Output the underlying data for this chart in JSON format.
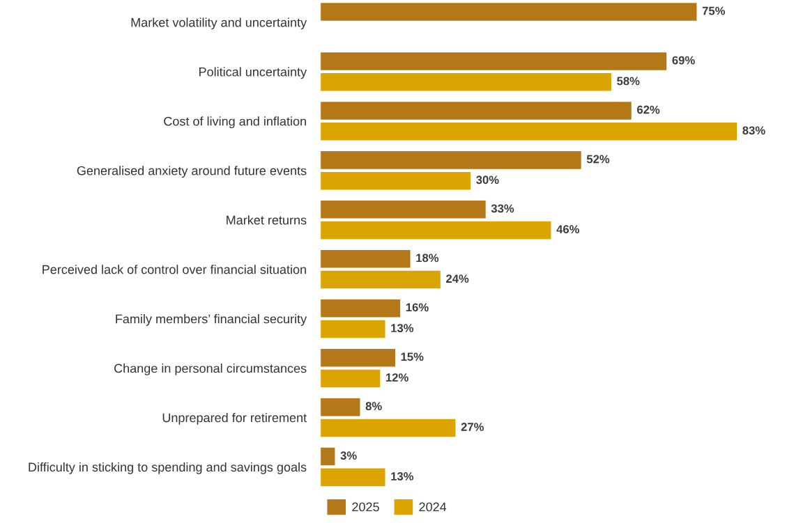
{
  "chart_data": {
    "type": "bar",
    "orientation": "horizontal",
    "categories": [
      "Market volatility and uncertainty",
      "Political uncertainty",
      "Cost of living and inflation",
      "Generalised anxiety around future events",
      "Market returns",
      "Perceived lack of control over financial situation",
      "Family members’ financial security",
      "Change in personal circumstances",
      "Unprepared for retirement",
      "Difficulty in sticking to spending and savings goals"
    ],
    "series": [
      {
        "name": "2025",
        "color": "#b47819",
        "values": [
          75,
          69,
          62,
          52,
          33,
          18,
          16,
          15,
          8,
          3
        ],
        "value_labels": [
          "75%",
          "69%",
          "62%",
          "52%",
          "33%",
          "18%",
          "16%",
          "15%",
          "8%",
          "3%"
        ]
      },
      {
        "name": "2024",
        "color": "#dba400",
        "values": [
          null,
          58,
          83,
          30,
          46,
          24,
          13,
          12,
          27,
          13
        ],
        "value_labels": [
          null,
          "58%",
          "83%",
          "30%",
          "46%",
          "24%",
          "13%",
          "12%",
          "27%",
          "13%"
        ]
      }
    ],
    "legend": "bottom",
    "tick_labels": "y",
    "grid": false
  }
}
